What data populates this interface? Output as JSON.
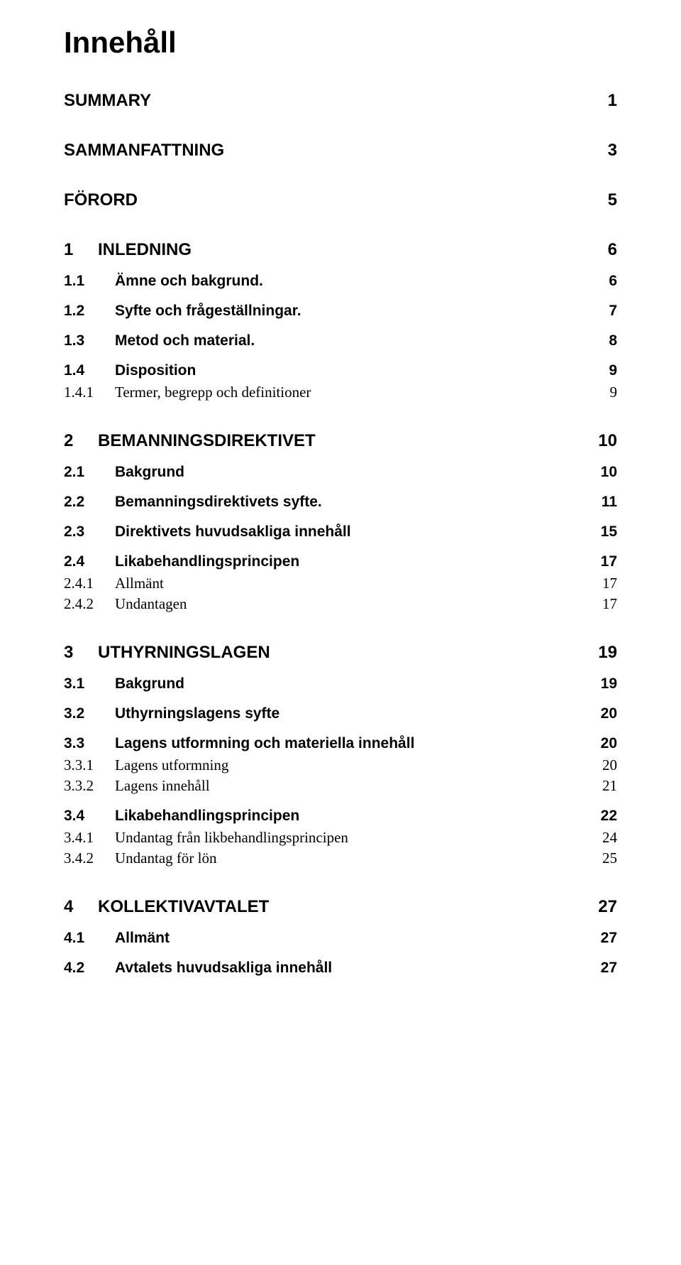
{
  "doc_title": "Innehåll",
  "entries": [
    {
      "level": 1,
      "num": "",
      "title": "SUMMARY",
      "page": "1"
    },
    {
      "level": 1,
      "num": "",
      "title": "SAMMANFATTNING",
      "page": "3"
    },
    {
      "level": 1,
      "num": "",
      "title": "FÖRORD",
      "page": "5"
    },
    {
      "level": 1,
      "num": "1",
      "title": "INLEDNING",
      "page": "6"
    },
    {
      "level": 2,
      "num": "1.1",
      "title": "Ämne och bakgrund.",
      "page": "6"
    },
    {
      "level": 2,
      "num": "1.2",
      "title": "Syfte och frågeställningar.",
      "page": "7"
    },
    {
      "level": 2,
      "num": "1.3",
      "title": "Metod och material.",
      "page": "8"
    },
    {
      "level": 2,
      "num": "1.4",
      "title": "Disposition",
      "page": "9"
    },
    {
      "level": 3,
      "num": "1.4.1",
      "title": "Termer, begrepp och definitioner",
      "page": "9"
    },
    {
      "level": 1,
      "num": "2",
      "title": "BEMANNINGSDIREKTIVET",
      "page": "10"
    },
    {
      "level": 2,
      "num": "2.1",
      "title": "Bakgrund",
      "page": "10"
    },
    {
      "level": 2,
      "num": "2.2",
      "title": "Bemanningsdirektivets syfte.",
      "page": "11"
    },
    {
      "level": 2,
      "num": "2.3",
      "title": "Direktivets huvudsakliga innehåll",
      "page": "15"
    },
    {
      "level": 2,
      "num": "2.4",
      "title": "Likabehandlingsprincipen",
      "page": "17"
    },
    {
      "level": 3,
      "num": "2.4.1",
      "title": "Allmänt",
      "page": "17"
    },
    {
      "level": 3,
      "num": "2.4.2",
      "title": "Undantagen",
      "page": "17"
    },
    {
      "level": 1,
      "num": "3",
      "title": "UTHYRNINGSLAGEN",
      "page": "19"
    },
    {
      "level": 2,
      "num": "3.1",
      "title": "Bakgrund",
      "page": "19"
    },
    {
      "level": 2,
      "num": "3.2",
      "title": "Uthyrningslagens syfte",
      "page": "20"
    },
    {
      "level": 2,
      "num": "3.3",
      "title": "Lagens utformning och materiella  innehåll",
      "page": "20"
    },
    {
      "level": 3,
      "num": "3.3.1",
      "title": "Lagens utformning",
      "page": "20"
    },
    {
      "level": 3,
      "num": "3.3.2",
      "title": "Lagens innehåll",
      "page": "21"
    },
    {
      "level": 2,
      "num": "3.4",
      "title": "Likabehandlingsprincipen",
      "page": "22"
    },
    {
      "level": 3,
      "num": "3.4.1",
      "title": "Undantag från likbehandlingsprincipen",
      "page": "24"
    },
    {
      "level": 3,
      "num": "3.4.2",
      "title": "Undantag för lön",
      "page": "25"
    },
    {
      "level": 1,
      "num": "4",
      "title": "KOLLEKTIVAVTALET",
      "page": "27"
    },
    {
      "level": 2,
      "num": "4.1",
      "title": "Allmänt",
      "page": "27"
    },
    {
      "level": 2,
      "num": "4.2",
      "title": "Avtalets huvudsakliga innehåll",
      "page": "27"
    }
  ]
}
